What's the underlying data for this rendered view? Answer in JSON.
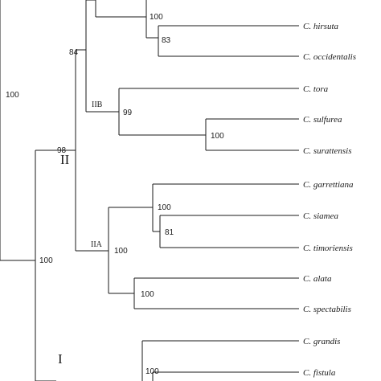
{
  "taxa": [
    "C. hirsuta",
    "C. occidentalis",
    "C. tora",
    "C. sulfurea",
    "C. surattensis",
    "C. garrettiana",
    "C. siamea",
    "C. timoriensis",
    "C. alata",
    "C. spectabilis",
    "C. grandis",
    "C. fistula"
  ],
  "support_values": {
    "root": "100",
    "hirsuta_top": "100",
    "hirsuta_occidentalis": "83",
    "upper_clade": "84",
    "iib": "99",
    "sulfurea_surattensis": "100",
    "clade_ii": "98",
    "clade_ii_i": "100",
    "iia": "100",
    "garrettiana_group": "100",
    "siamea_timoriensis": "81",
    "alata_spectabilis": "100",
    "clade_i": "100"
  },
  "clade_labels": {
    "iib": "IIB",
    "iia": "IIA",
    "ii": "II",
    "i": "I"
  }
}
